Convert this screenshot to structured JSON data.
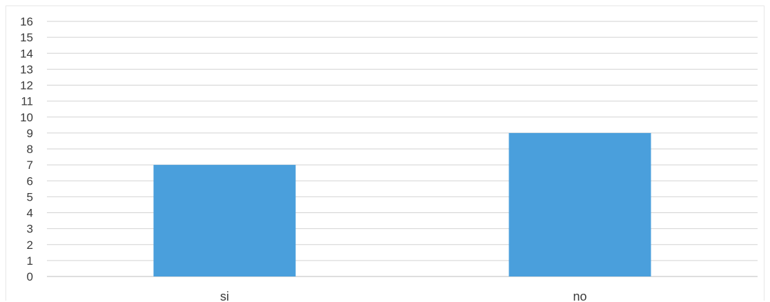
{
  "chart_data": {
    "type": "bar",
    "categories": [
      "si",
      "no"
    ],
    "values": [
      7,
      9
    ],
    "title": "",
    "xlabel": "",
    "ylabel": "",
    "ylim": [
      0,
      16
    ],
    "y_ticks": [
      0,
      1,
      2,
      3,
      4,
      5,
      6,
      7,
      8,
      9,
      10,
      11,
      12,
      13,
      14,
      15,
      16
    ],
    "grid": true,
    "legend": "none",
    "bar_color": "#4a9fdc",
    "grid_color": "#d2d2d2",
    "text_color": "#3a3a3a"
  }
}
